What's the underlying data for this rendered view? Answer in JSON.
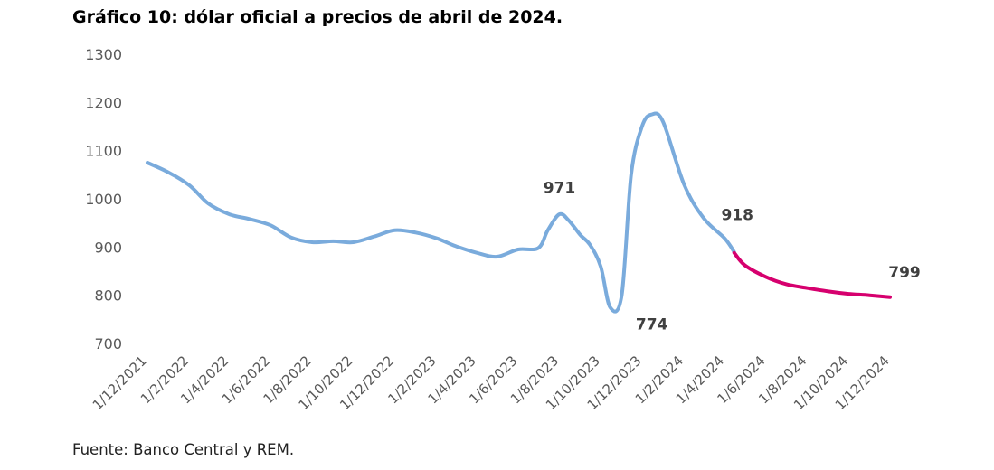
{
  "title": "Gráfico 10: dólar oficial a precios de abril de 2024.",
  "source": "Fuente: Banco Central y REM.",
  "chart_data": {
    "type": "line",
    "title": "Gráfico 10: dólar oficial a precios de abril de 2024.",
    "xlabel": "",
    "ylabel": "",
    "ylim": [
      700,
      1300
    ],
    "yticks": [
      "700",
      "800",
      "900",
      "1000",
      "1100",
      "1200",
      "1300"
    ],
    "grid": false,
    "x_tick_labels": [
      "1/12/2021",
      "1/2/2022",
      "1/4/2022",
      "1/6/2022",
      "1/8/2022",
      "1/10/2022",
      "1/12/2022",
      "1/2/2023",
      "1/4/2023",
      "1/6/2023",
      "1/8/2023",
      "1/10/2023",
      "1/12/2023",
      "1/2/2024",
      "1/4/2024",
      "1/6/2024",
      "1/8/2024",
      "1/10/2024",
      "1/12/2024"
    ],
    "series": [
      {
        "color": "#7aabdc",
        "x": [
          "2021-12-01",
          "2022-01-01",
          "2022-02-01",
          "2022-03-01",
          "2022-04-01",
          "2022-05-01",
          "2022-06-01",
          "2022-07-01",
          "2022-08-01",
          "2022-09-01",
          "2022-10-01",
          "2022-11-01",
          "2022-12-01",
          "2023-01-01",
          "2023-02-01",
          "2023-03-01",
          "2023-04-01",
          "2023-05-01",
          "2023-06-01",
          "2023-07-01",
          "2023-07-15",
          "2023-08-01",
          "2023-08-15",
          "2023-09-01",
          "2023-09-15",
          "2023-10-01",
          "2023-10-15",
          "2023-11-01",
          "2023-11-15",
          "2023-12-01",
          "2023-12-15",
          "2024-01-01",
          "2024-02-01",
          "2024-03-01",
          "2024-04-01",
          "2024-04-15"
        ],
        "y": [
          1075,
          1055,
          1028,
          990,
          968,
          958,
          945,
          920,
          910,
          912,
          910,
          922,
          935,
          930,
          918,
          902,
          888,
          880,
          895,
          898,
          935,
          968,
          955,
          925,
          905,
          860,
          775,
          800,
          1050,
          1150,
          1175,
          1160,
          1030,
          960,
          918,
          890
        ]
      },
      {
        "color": "#d6006e",
        "x": [
          "2024-04-15",
          "2024-05-01",
          "2024-06-01",
          "2024-07-01",
          "2024-08-01",
          "2024-09-01",
          "2024-10-01",
          "2024-11-01",
          "2024-12-01"
        ],
        "y": [
          888,
          862,
          838,
          823,
          815,
          808,
          803,
          800,
          796
        ]
      }
    ],
    "annotations": [
      {
        "text": "971",
        "x": "2023-08-01",
        "y": 971
      },
      {
        "text": "774",
        "x": "2023-10-15",
        "y": 774
      },
      {
        "text": "918",
        "x": "2024-04-01",
        "y": 918
      },
      {
        "text": "799",
        "x": "2024-12-01",
        "y": 799
      }
    ]
  }
}
